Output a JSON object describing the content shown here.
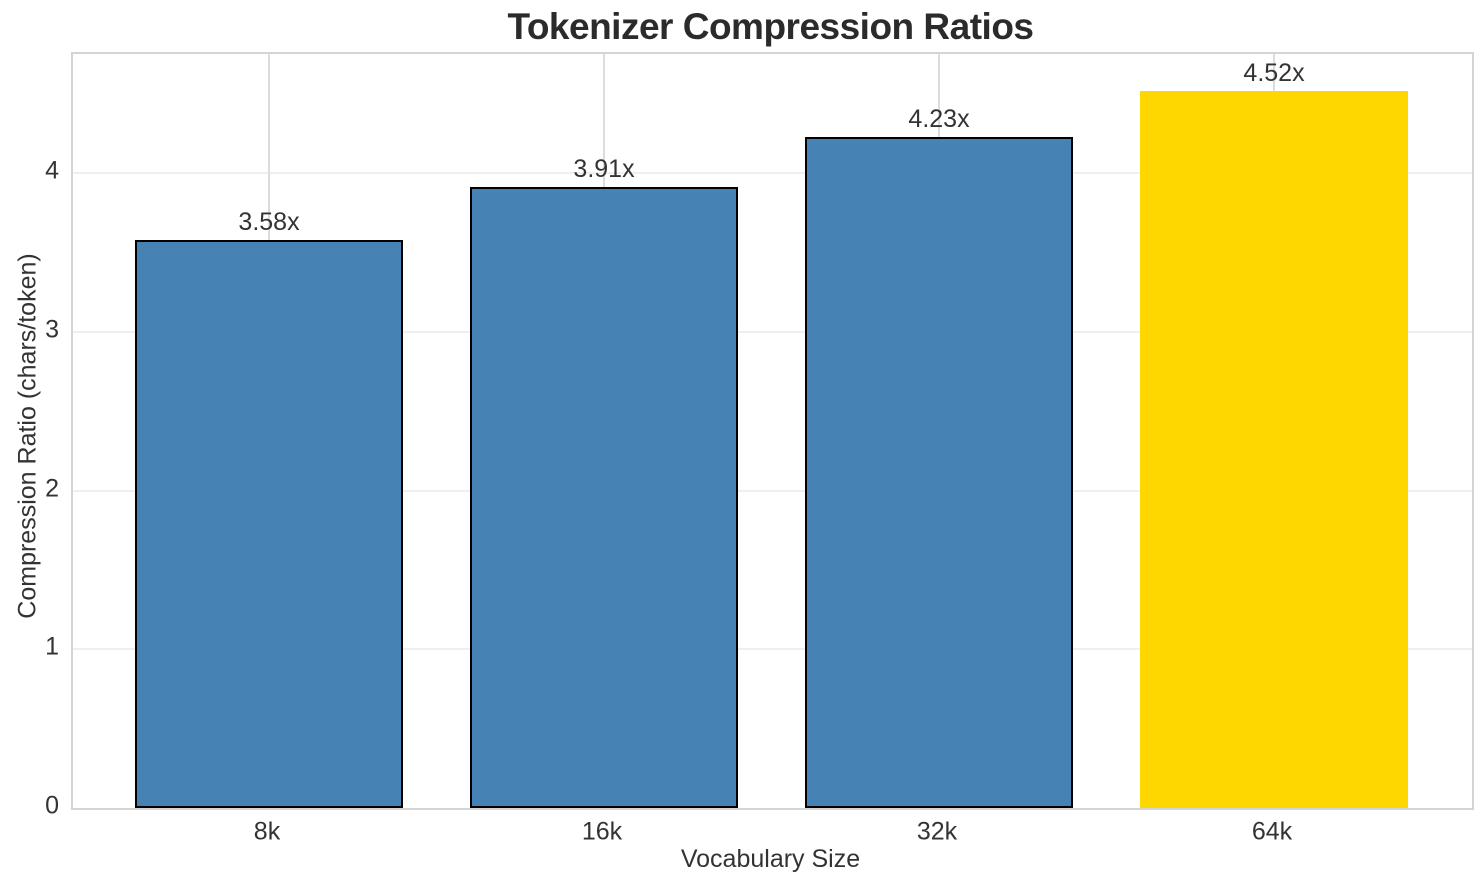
{
  "chart_data": {
    "type": "bar",
    "title": "Tokenizer Compression Ratios",
    "xlabel": "Vocabulary Size",
    "ylabel": "Compression Ratio (chars/token)",
    "categories": [
      "8k",
      "16k",
      "32k",
      "64k"
    ],
    "values": [
      3.58,
      3.91,
      4.23,
      4.52
    ],
    "bar_labels": [
      "3.58x",
      "3.91x",
      "4.23x",
      "4.52x"
    ],
    "yticks": [
      "0",
      "1",
      "2",
      "3",
      "4"
    ],
    "ytick_values": [
      0,
      1,
      2,
      3,
      4
    ],
    "ylim": [
      0,
      4.75
    ],
    "grid": true,
    "legend": false,
    "highlight_category": "64k",
    "colors": {
      "bar_fill": "#4682B4",
      "highlight_fill": "#FFD700",
      "bar_edge": "#000000",
      "title_text": "#2b2b2b",
      "axis_text": "#333333",
      "spine": "#d4d4d4",
      "grid_h": "#efefef",
      "grid_v": "#dcdcdc"
    },
    "bar_colors": [
      "#4682B4",
      "#4682B4",
      "#4682B4",
      "#FFD700"
    ],
    "bar_edge_colors": [
      "#000000",
      "#000000",
      "#000000",
      "none"
    ]
  }
}
